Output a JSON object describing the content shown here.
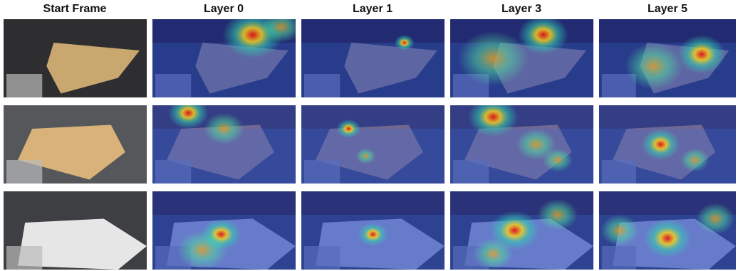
{
  "headers": [
    "Start Frame",
    "Layer 0",
    "Layer 1",
    "Layer 3",
    "Layer 5"
  ]
}
